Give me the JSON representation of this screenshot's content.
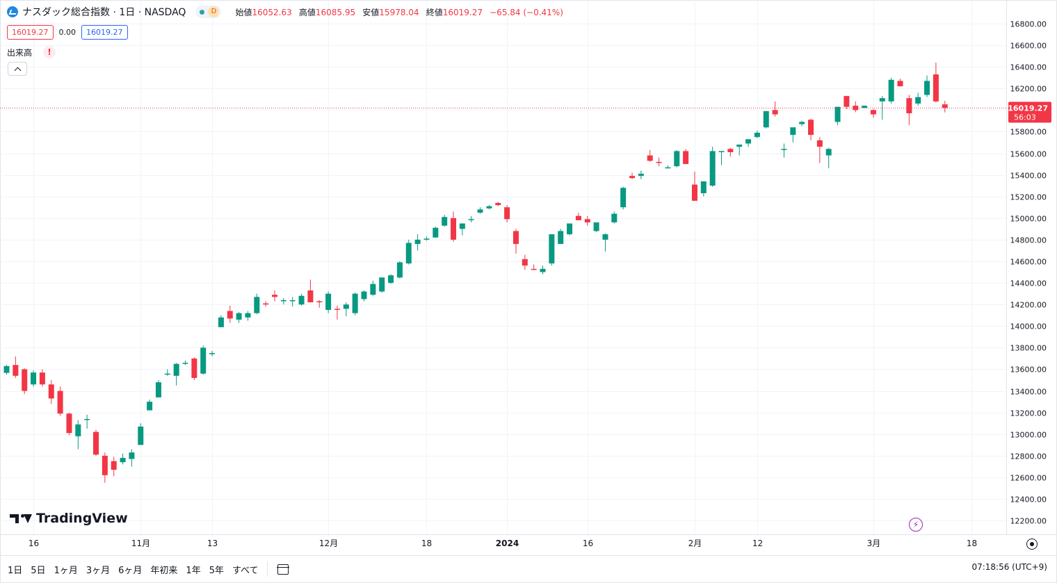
{
  "header": {
    "title": "ナスダック総合指数 · 1日 · NASDAQ",
    "interval_badge": "D",
    "ohlc": {
      "open_label": "始値",
      "open": "16052.63",
      "high_label": "高値",
      "high": "16085.95",
      "low_label": "安値",
      "low": "15978.04",
      "close_label": "終値",
      "close": "16019.27",
      "change": "−65.84 (−0.41%)"
    },
    "sell_price": "16019.27",
    "spread": "0.00",
    "buy_price": "16019.27",
    "volume_label": "出来高",
    "volume_warning": "!"
  },
  "watermark": "TradingView",
  "last_price_label": {
    "price": "16019.27",
    "countdown": "56:03"
  },
  "bottom": {
    "ranges": [
      "1日",
      "5日",
      "1ヶ月",
      "3ヶ月",
      "6ヶ月",
      "年初来",
      "1年",
      "5年",
      "すべて"
    ],
    "clock": "07:18:56 (UTC+9)"
  },
  "colors": {
    "up": "#089981",
    "down": "#f23645",
    "grid": "#f0f3fa",
    "price_line": "#f23645"
  },
  "chart_data": {
    "type": "candlestick",
    "title": "ナスダック総合指数",
    "y_ticks": [
      12200,
      12400,
      12600,
      12800,
      13000,
      13200,
      13400,
      13600,
      13800,
      14000,
      14200,
      14400,
      14600,
      14800,
      15000,
      15200,
      15400,
      15600,
      15800,
      16000,
      16200,
      16400,
      16600,
      16800
    ],
    "y_tick_labels": [
      "12200.00",
      "12400.00",
      "12600.00",
      "12800.00",
      "13000.00",
      "13200.00",
      "13400.00",
      "13600.00",
      "13800.00",
      "14000.00",
      "14200.00",
      "14400.00",
      "14600.00",
      "14800.00",
      "15000.00",
      "15200.00",
      "15400.00",
      "15600.00",
      "15800.00",
      "16000.00",
      "16200.00",
      "16400.00",
      "16600.00",
      "16800.00"
    ],
    "ylim": [
      12130,
      16890
    ],
    "x_labels": [
      {
        "label": "16",
        "bar": 3,
        "bold": false
      },
      {
        "label": "11月",
        "bar": 15,
        "bold": false
      },
      {
        "label": "13",
        "bar": 23,
        "bold": false
      },
      {
        "label": "12月",
        "bar": 36,
        "bold": false
      },
      {
        "label": "18",
        "bar": 47,
        "bold": false
      },
      {
        "label": "2024",
        "bar": 56,
        "bold": true
      },
      {
        "label": "16",
        "bar": 65,
        "bold": false
      },
      {
        "label": "2月",
        "bar": 77,
        "bold": false
      },
      {
        "label": "12",
        "bar": 84,
        "bold": false
      },
      {
        "label": "3月",
        "bar": 97,
        "bold": false
      },
      {
        "label": "18",
        "bar": 108,
        "bold": false
      }
    ],
    "candles": [
      [
        13567,
        13640,
        13550,
        13630
      ],
      [
        13640,
        13720,
        13520,
        13540
      ],
      [
        13600,
        13610,
        13370,
        13400
      ],
      [
        13460,
        13590,
        13440,
        13570
      ],
      [
        13570,
        13600,
        13440,
        13460
      ],
      [
        13460,
        13500,
        13280,
        13330
      ],
      [
        13400,
        13440,
        13170,
        13190
      ],
      [
        13190,
        13200,
        12990,
        13010
      ],
      [
        12980,
        13130,
        12860,
        13090
      ],
      [
        13140,
        13180,
        13050,
        13140
      ],
      [
        13020,
        13040,
        12800,
        12810
      ],
      [
        12800,
        12830,
        12550,
        12620
      ],
      [
        12750,
        12790,
        12610,
        12670
      ],
      [
        12740,
        12820,
        12720,
        12780
      ],
      [
        12770,
        12860,
        12700,
        12830
      ],
      [
        12900,
        13100,
        12900,
        13070
      ],
      [
        13220,
        13320,
        13220,
        13300
      ],
      [
        13340,
        13500,
        13340,
        13480
      ],
      [
        13560,
        13600,
        13540,
        13560
      ],
      [
        13540,
        13660,
        13450,
        13650
      ],
      [
        13660,
        13680,
        13640,
        13660
      ],
      [
        13700,
        13710,
        13500,
        13520
      ],
      [
        13560,
        13820,
        13550,
        13800
      ],
      [
        13740,
        13770,
        13720,
        13750
      ],
      [
        13990,
        14100,
        13990,
        14080
      ],
      [
        14140,
        14190,
        14030,
        14070
      ],
      [
        14060,
        14130,
        14030,
        14120
      ],
      [
        14080,
        14140,
        14050,
        14120
      ],
      [
        14120,
        14300,
        14110,
        14270
      ],
      [
        14210,
        14230,
        14180,
        14200
      ],
      [
        14290,
        14330,
        14230,
        14270
      ],
      [
        14230,
        14260,
        14200,
        14240
      ],
      [
        14240,
        14270,
        14180,
        14240
      ],
      [
        14200,
        14300,
        14190,
        14280
      ],
      [
        14330,
        14430,
        14220,
        14220
      ],
      [
        14230,
        14240,
        14170,
        14220
      ],
      [
        14150,
        14320,
        14120,
        14300
      ],
      [
        14160,
        14190,
        14060,
        14150
      ],
      [
        14160,
        14220,
        14090,
        14200
      ],
      [
        14120,
        14310,
        14100,
        14300
      ],
      [
        14250,
        14330,
        14230,
        14320
      ],
      [
        14290,
        14420,
        14280,
        14390
      ],
      [
        14320,
        14450,
        14310,
        14450
      ],
      [
        14400,
        14480,
        14390,
        14470
      ],
      [
        14450,
        14600,
        14440,
        14590
      ],
      [
        14580,
        14800,
        14570,
        14770
      ],
      [
        14760,
        14850,
        14700,
        14800
      ],
      [
        14800,
        14830,
        14790,
        14810
      ],
      [
        14820,
        14920,
        14820,
        14910
      ],
      [
        14930,
        15030,
        14920,
        15010
      ],
      [
        15000,
        15060,
        14780,
        14800
      ],
      [
        14900,
        14950,
        14840,
        14950
      ],
      [
        14990,
        15020,
        14960,
        14990
      ],
      [
        15050,
        15100,
        15040,
        15080
      ],
      [
        15090,
        15120,
        15080,
        15110
      ],
      [
        15140,
        15150,
        15110,
        15120
      ],
      [
        15100,
        15120,
        14960,
        14990
      ],
      [
        14880,
        14900,
        14670,
        14760
      ],
      [
        14620,
        14660,
        14520,
        14560
      ],
      [
        14530,
        14570,
        14520,
        14520
      ],
      [
        14500,
        14560,
        14480,
        14530
      ],
      [
        14580,
        14850,
        14560,
        14850
      ],
      [
        14760,
        14900,
        14760,
        14880
      ],
      [
        14850,
        14950,
        14840,
        14950
      ],
      [
        15020,
        15050,
        14980,
        14980
      ],
      [
        14990,
        15020,
        14930,
        14960
      ],
      [
        14880,
        14960,
        14870,
        14960
      ],
      [
        14800,
        14860,
        14690,
        14850
      ],
      [
        14960,
        15060,
        14950,
        15040
      ],
      [
        15100,
        15290,
        15080,
        15280
      ],
      [
        15390,
        15420,
        15360,
        15370
      ],
      [
        15390,
        15440,
        15360,
        15410
      ],
      [
        15580,
        15630,
        15520,
        15530
      ],
      [
        15520,
        15560,
        15480,
        15510
      ],
      [
        15460,
        15490,
        15460,
        15470
      ],
      [
        15480,
        15630,
        15470,
        15620
      ],
      [
        15620,
        15640,
        15510,
        15500
      ],
      [
        15310,
        15430,
        15160,
        15160
      ],
      [
        15230,
        15330,
        15200,
        15340
      ],
      [
        15300,
        15660,
        15290,
        15620
      ],
      [
        15610,
        15620,
        15490,
        15620
      ],
      [
        15640,
        15650,
        15570,
        15610
      ],
      [
        15660,
        15680,
        15580,
        15680
      ],
      [
        15690,
        15730,
        15660,
        15730
      ],
      [
        15750,
        15810,
        15740,
        15790
      ],
      [
        15840,
        15990,
        15830,
        15990
      ],
      [
        16000,
        16080,
        15940,
        15960
      ],
      [
        15630,
        15690,
        15560,
        15640
      ],
      [
        15770,
        15830,
        15700,
        15840
      ],
      [
        15870,
        15900,
        15850,
        15890
      ],
      [
        15910,
        15920,
        15720,
        15770
      ],
      [
        15720,
        15750,
        15510,
        15660
      ],
      [
        15580,
        15650,
        15460,
        15640
      ],
      [
        15890,
        16020,
        15860,
        16030
      ],
      [
        16130,
        16130,
        16010,
        16030
      ],
      [
        16040,
        16080,
        15980,
        16000
      ],
      [
        16020,
        16040,
        16020,
        16040
      ],
      [
        16000,
        16010,
        15930,
        15960
      ],
      [
        16080,
        16130,
        15910,
        16110
      ],
      [
        16080,
        16300,
        16060,
        16280
      ],
      [
        16270,
        16290,
        16220,
        16220
      ],
      [
        16110,
        16140,
        15860,
        15970
      ],
      [
        16060,
        16160,
        16040,
        16120
      ],
      [
        16140,
        16320,
        16120,
        16270
      ],
      [
        16330,
        16440,
        16070,
        16080
      ],
      [
        16052.63,
        16085.95,
        15978.04,
        16019.27
      ]
    ]
  }
}
